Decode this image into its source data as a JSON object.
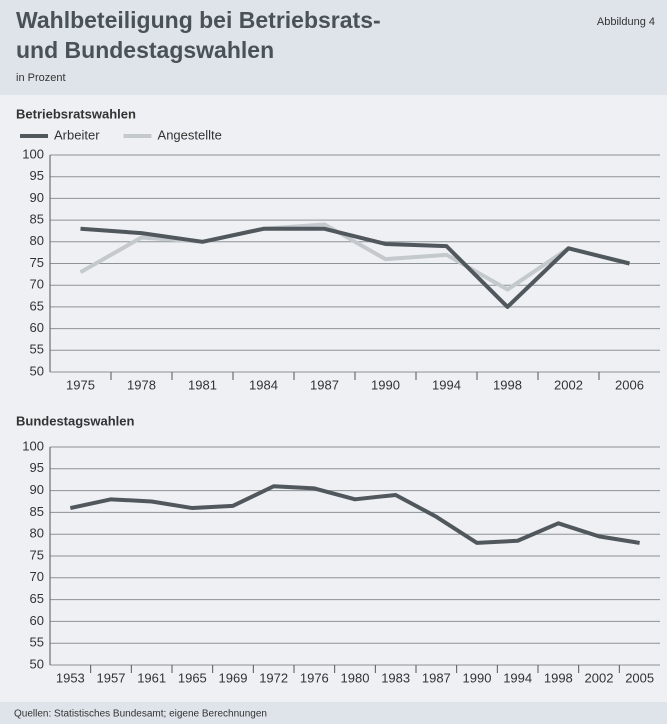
{
  "header": {
    "title": [
      "Wahlbeteiligung bei Betriebsrats-",
      "und Bundestagswahlen"
    ],
    "figure": "Abbildung 4",
    "subtitle": "in Prozent"
  },
  "source": "Quellen: Statistisches Bundesamt; eigene Berechnungen",
  "chart_data": [
    {
      "type": "line",
      "title": "Betriebsratswahlen",
      "categories": [
        "1975",
        "1978",
        "1981",
        "1984",
        "1987",
        "1990",
        "1994",
        "1998",
        "2002",
        "2006"
      ],
      "series": [
        {
          "name": "Arbeiter",
          "color": "#50585e",
          "values": [
            83,
            82,
            80,
            83,
            83,
            79.5,
            79,
            65,
            78.5,
            75
          ]
        },
        {
          "name": "Angestellte",
          "color": "#c4c9ce",
          "values": [
            73,
            81,
            80,
            83,
            84,
            76,
            77,
            69,
            78.5,
            75
          ]
        }
      ],
      "ylim": [
        50,
        100
      ],
      "yticks": [
        50,
        55,
        60,
        65,
        70,
        75,
        80,
        85,
        90,
        95,
        100
      ],
      "grid": true,
      "legend": "top-left"
    },
    {
      "type": "line",
      "title": "Bundestagswahlen",
      "categories": [
        "1953",
        "1957",
        "1961",
        "1965",
        "1969",
        "1972",
        "1976",
        "1980",
        "1983",
        "1987",
        "1990",
        "1994",
        "1998",
        "2002",
        "2005"
      ],
      "values": [
        86,
        88,
        87.5,
        86,
        86.5,
        91,
        90.5,
        88,
        89,
        84,
        78,
        78.5,
        82.5,
        79.5,
        78
      ],
      "color": "#50585e",
      "ylim": [
        50,
        100
      ],
      "yticks": [
        50,
        55,
        60,
        65,
        70,
        75,
        80,
        85,
        90,
        95,
        100
      ],
      "grid": true
    }
  ]
}
